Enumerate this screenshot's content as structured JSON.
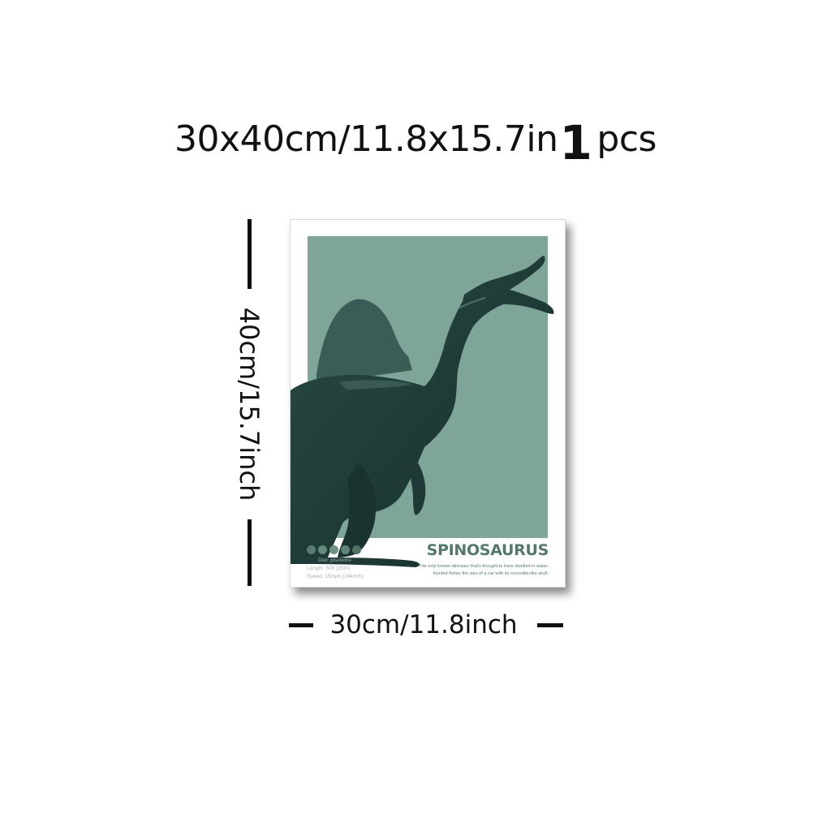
{
  "header": {
    "size_text": "30x40cm/11.8x15.7in",
    "quantity": "1",
    "quantity_unit": "pcs"
  },
  "dimensions": {
    "height_label": "40cm/15.7inch",
    "width_label": "30cm/11.8inch"
  },
  "poster": {
    "name": "SPINOSAURUS",
    "stats": [
      "Diet: piscivore",
      "Length: 50ft (15m)",
      "Speed: 15mph (24km/h)"
    ],
    "description": [
      "The only known dinosaur that's thought to have dwelled in water.",
      "Hunted fishes the size of a car with its crocodile-like skull."
    ],
    "colors": {
      "panel": "#7fa498",
      "dinosaur": "#1f3a36",
      "name": "#54796c"
    },
    "dot_count": 5
  }
}
